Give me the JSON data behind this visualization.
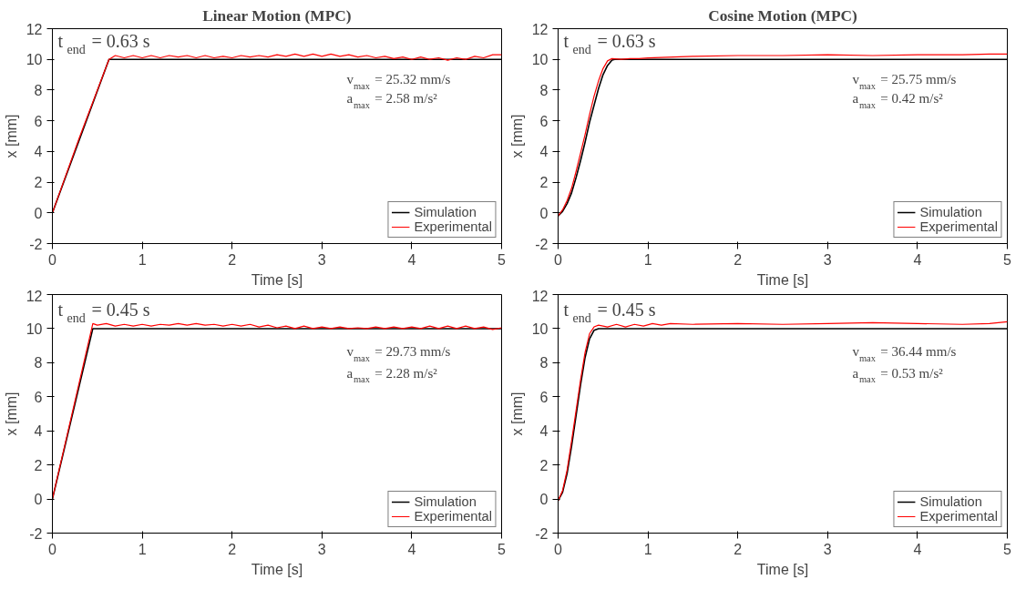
{
  "chart_data": [
    {
      "type": "line",
      "title": "Linear Motion (MPC)",
      "xlabel": "Time [s]",
      "ylabel": "x [mm]",
      "xlim": [
        0,
        5
      ],
      "ylim": [
        -2,
        12
      ],
      "xticks": [
        0,
        1,
        2,
        3,
        4,
        5
      ],
      "yticks": [
        -2,
        0,
        2,
        4,
        6,
        8,
        10,
        12
      ],
      "grid": false,
      "legend": "bottom right",
      "line_style": "solid",
      "marker": "none",
      "annotations": [
        "t$_{end}$ = 0.63 s",
        "v$_{max}$ = 25.32 mm/s",
        "a$_{max}$ = 2.58 m/s²"
      ],
      "series": [
        {
          "name": "Simulation",
          "color": "#000000",
          "x": [
            0,
            0.63,
            5
          ],
          "values": [
            0,
            10,
            10
          ]
        },
        {
          "name": "Experimental",
          "color": "#ff0000",
          "x": [
            0,
            0.3,
            0.63,
            0.7,
            0.8,
            0.9,
            1.0,
            1.1,
            1.2,
            1.3,
            1.4,
            1.5,
            1.6,
            1.7,
            1.8,
            1.9,
            2.0,
            2.1,
            2.2,
            2.3,
            2.4,
            2.5,
            2.6,
            2.7,
            2.8,
            2.9,
            3.0,
            3.1,
            3.2,
            3.3,
            3.4,
            3.5,
            3.6,
            3.7,
            3.8,
            3.9,
            4.0,
            4.1,
            4.2,
            4.3,
            4.4,
            4.5,
            4.6,
            4.7,
            4.8,
            4.9,
            5.0
          ],
          "values": [
            0,
            4.9,
            10.0,
            10.25,
            10.1,
            10.25,
            10.1,
            10.25,
            10.1,
            10.25,
            10.15,
            10.25,
            10.1,
            10.25,
            10.1,
            10.2,
            10.1,
            10.25,
            10.15,
            10.25,
            10.15,
            10.3,
            10.2,
            10.35,
            10.2,
            10.35,
            10.2,
            10.35,
            10.2,
            10.3,
            10.15,
            10.25,
            10.1,
            10.2,
            10.05,
            10.15,
            10.0,
            10.15,
            10.0,
            10.1,
            9.95,
            10.1,
            10.0,
            10.2,
            10.1,
            10.3,
            10.3
          ]
        }
      ]
    },
    {
      "type": "line",
      "title": "Cosine Motion (MPC)",
      "xlabel": "Time [s]",
      "ylabel": "x [mm]",
      "xlim": [
        0,
        5
      ],
      "ylim": [
        -2,
        12
      ],
      "xticks": [
        0,
        1,
        2,
        3,
        4,
        5
      ],
      "yticks": [
        -2,
        0,
        2,
        4,
        6,
        8,
        10,
        12
      ],
      "grid": false,
      "legend": "bottom right",
      "line_style": "solid",
      "marker": "none",
      "annotations": [
        "t$_{end}$ = 0.63 s",
        "v$_{max}$ = 25.75 mm/s",
        "a$_{max}$ = 0.42 m/s²"
      ],
      "series": [
        {
          "name": "Simulation",
          "color": "#000000",
          "x": [
            0,
            0.05,
            0.1,
            0.15,
            0.2,
            0.25,
            0.3,
            0.35,
            0.4,
            0.45,
            0.5,
            0.55,
            0.6,
            0.63,
            5
          ],
          "values": [
            -0.2,
            0.1,
            0.6,
            1.3,
            2.3,
            3.4,
            4.6,
            5.9,
            7.0,
            8.1,
            9.0,
            9.6,
            9.95,
            10.0,
            10.0
          ]
        },
        {
          "name": "Experimental",
          "color": "#ff0000",
          "x": [
            0,
            0.05,
            0.1,
            0.15,
            0.2,
            0.25,
            0.3,
            0.35,
            0.4,
            0.45,
            0.5,
            0.55,
            0.6,
            0.7,
            0.8,
            0.9,
            1.0,
            1.5,
            2.0,
            2.5,
            3.0,
            3.5,
            4.0,
            4.5,
            4.8,
            5.0
          ],
          "values": [
            -0.2,
            0.2,
            0.8,
            1.6,
            2.7,
            3.9,
            5.1,
            6.4,
            7.6,
            8.6,
            9.4,
            9.9,
            10.05,
            10.0,
            10.05,
            10.05,
            10.1,
            10.2,
            10.25,
            10.25,
            10.3,
            10.25,
            10.3,
            10.3,
            10.35,
            10.35
          ]
        }
      ]
    },
    {
      "type": "line",
      "xlabel": "Time [s]",
      "ylabel": "x [mm]",
      "xlim": [
        0,
        5
      ],
      "ylim": [
        -2,
        12
      ],
      "xticks": [
        0,
        1,
        2,
        3,
        4,
        5
      ],
      "yticks": [
        -2,
        0,
        2,
        4,
        6,
        8,
        10,
        12
      ],
      "grid": false,
      "legend": "bottom right",
      "line_style": "solid",
      "marker": "none",
      "annotations": [
        "t$_{end}$ = 0.45 s",
        "v$_{max}$ = 29.73 mm/s",
        "a$_{max}$ = 2.28 m/s²"
      ],
      "series": [
        {
          "name": "Simulation",
          "color": "#000000",
          "x": [
            0,
            0.45,
            5
          ],
          "values": [
            0,
            10,
            10
          ]
        },
        {
          "name": "Experimental",
          "color": "#ff0000",
          "x": [
            0,
            0.45,
            0.5,
            0.6,
            0.7,
            0.8,
            0.9,
            1.0,
            1.1,
            1.2,
            1.3,
            1.4,
            1.5,
            1.6,
            1.7,
            1.8,
            1.9,
            2.0,
            2.1,
            2.2,
            2.3,
            2.4,
            2.5,
            2.6,
            2.7,
            2.8,
            2.9,
            3.0,
            3.1,
            3.2,
            3.3,
            3.4,
            3.5,
            3.6,
            3.7,
            3.8,
            3.9,
            4.0,
            4.1,
            4.2,
            4.3,
            4.4,
            4.5,
            4.6,
            4.7,
            4.8,
            4.9,
            5.0
          ],
          "values": [
            0,
            10.3,
            10.2,
            10.3,
            10.15,
            10.25,
            10.15,
            10.25,
            10.15,
            10.25,
            10.2,
            10.3,
            10.2,
            10.3,
            10.2,
            10.25,
            10.15,
            10.25,
            10.15,
            10.25,
            10.1,
            10.2,
            10.05,
            10.15,
            10.0,
            10.15,
            10.0,
            10.1,
            10.0,
            10.1,
            10.0,
            10.05,
            10.0,
            10.1,
            10.0,
            10.1,
            10.0,
            10.1,
            10.0,
            10.15,
            10.0,
            10.15,
            10.0,
            10.15,
            10.0,
            10.1,
            9.95,
            10.05
          ]
        }
      ]
    },
    {
      "type": "line",
      "xlabel": "Time [s]",
      "ylabel": "x [mm]",
      "xlim": [
        0,
        5
      ],
      "ylim": [
        -2,
        12
      ],
      "xticks": [
        0,
        1,
        2,
        3,
        4,
        5
      ],
      "yticks": [
        -2,
        0,
        2,
        4,
        6,
        8,
        10,
        12
      ],
      "grid": false,
      "legend": "bottom right",
      "line_style": "solid",
      "marker": "none",
      "annotations": [
        "t$_{end}$ = 0.45 s",
        "v$_{max}$ = 36.44 mm/s",
        "a$_{max}$ = 0.53 m/s²"
      ],
      "series": [
        {
          "name": "Simulation",
          "color": "#000000",
          "x": [
            0,
            0.05,
            0.1,
            0.15,
            0.2,
            0.25,
            0.3,
            0.35,
            0.4,
            0.45,
            5
          ],
          "values": [
            -0.1,
            0.4,
            1.5,
            3.1,
            4.9,
            6.7,
            8.3,
            9.4,
            9.9,
            10.0,
            10.0
          ]
        },
        {
          "name": "Experimental",
          "color": "#ff0000",
          "x": [
            0,
            0.05,
            0.1,
            0.15,
            0.2,
            0.25,
            0.3,
            0.35,
            0.4,
            0.45,
            0.55,
            0.65,
            0.75,
            0.85,
            0.95,
            1.05,
            1.15,
            1.25,
            1.5,
            2.0,
            2.5,
            3.0,
            3.5,
            4.0,
            4.5,
            4.8,
            5.0
          ],
          "values": [
            -0.1,
            0.5,
            1.7,
            3.4,
            5.2,
            7.0,
            8.6,
            9.7,
            10.1,
            10.2,
            10.1,
            10.25,
            10.1,
            10.25,
            10.15,
            10.3,
            10.2,
            10.3,
            10.25,
            10.3,
            10.25,
            10.3,
            10.35,
            10.3,
            10.25,
            10.3,
            10.4
          ]
        }
      ]
    }
  ]
}
